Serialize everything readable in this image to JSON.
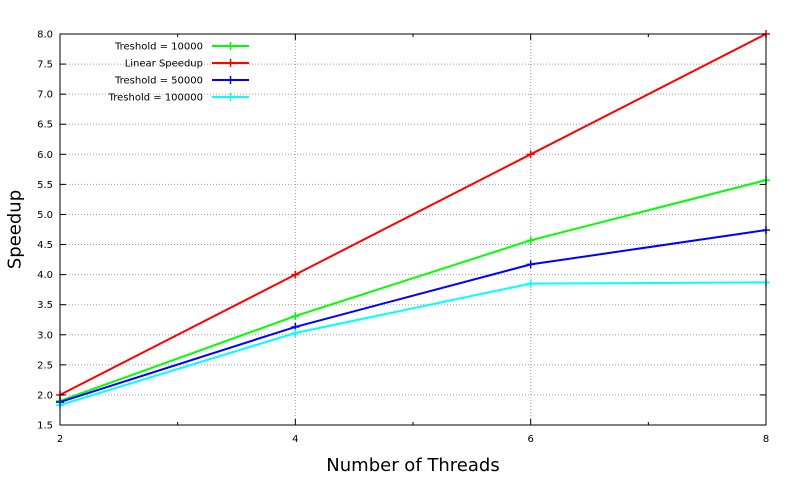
{
  "chart_data": {
    "type": "line",
    "title": "",
    "xlabel": "Number of Threads",
    "ylabel": "Speedup",
    "xlim": [
      2,
      8
    ],
    "ylim": [
      1.5,
      8.0
    ],
    "x_ticks": [
      2,
      4,
      6,
      8
    ],
    "y_ticks": [
      1.5,
      2.0,
      2.5,
      3.0,
      3.5,
      4.0,
      4.5,
      5.0,
      5.5,
      6.0,
      6.5,
      7.0,
      7.5,
      8.0
    ],
    "grid": true,
    "legend_position": "top-left",
    "series": [
      {
        "name": "Treshold = 10000",
        "color": "#00ff00",
        "x": [
          2,
          4,
          6,
          8
        ],
        "y": [
          1.9,
          3.31,
          4.57,
          5.57
        ]
      },
      {
        "name": "Linear Speedup",
        "color": "#ff0000",
        "x": [
          2,
          4,
          6,
          8
        ],
        "y": [
          2.0,
          4.0,
          6.0,
          8.0
        ]
      },
      {
        "name": "Treshold = 50000",
        "color": "#0000ff",
        "x": [
          2,
          4,
          6,
          8
        ],
        "y": [
          1.88,
          3.13,
          4.17,
          4.74
        ]
      },
      {
        "name": "Treshold = 100000",
        "color": "#00ffff",
        "x": [
          2,
          4,
          6,
          8
        ],
        "y": [
          1.83,
          3.03,
          3.85,
          3.87
        ]
      }
    ]
  }
}
